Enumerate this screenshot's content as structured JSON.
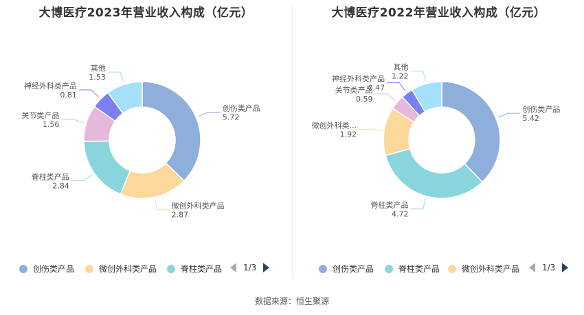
{
  "source": "数据来源：恒生聚源",
  "chart_data": [
    {
      "type": "pie",
      "title": "大博医疗2023年营业收入构成（亿元）",
      "series": [
        {
          "name": "创伤类产品",
          "value": 5.72,
          "color": "#8eaedb",
          "label_name": "创伤类产品",
          "label_value": "5.72"
        },
        {
          "name": "微创外科类产品",
          "value": 2.87,
          "color": "#fcd89a",
          "label_name": "微创外科类产品",
          "label_value": "2.87"
        },
        {
          "name": "脊柱类产品",
          "value": 2.84,
          "color": "#88d6dc",
          "label_name": "脊柱类产品",
          "label_value": "2.84"
        },
        {
          "name": "关节类产品",
          "value": 1.56,
          "color": "#e6b8d9",
          "label_name": "关节类产品",
          "label_value": "1.56"
        },
        {
          "name": "神经外科类产品",
          "value": 0.81,
          "color": "#7b7ff2",
          "label_name": "神经外科类产品",
          "label_value": "0.81"
        },
        {
          "name": "其他",
          "value": 1.53,
          "color": "#a4e0f7",
          "label_name": "其他",
          "label_value": "1.53"
        }
      ],
      "legend": {
        "items": [
          {
            "label": "创伤类产品",
            "color": "#8eaedb"
          },
          {
            "label": "微创外科类产品",
            "color": "#fcd89a"
          },
          {
            "label": "脊柱类产品",
            "color": "#88d6dc"
          }
        ],
        "page": "1/3"
      }
    },
    {
      "type": "pie",
      "title": "大博医疗2022年营业收入构成（亿元）",
      "series": [
        {
          "name": "创伤类产品",
          "value": 5.42,
          "color": "#8eaedb",
          "label_name": "创伤类产品",
          "label_value": "5.42"
        },
        {
          "name": "脊柱类产品",
          "value": 4.72,
          "color": "#88d6dc",
          "label_name": "脊柱类产品",
          "label_value": "4.72"
        },
        {
          "name": "微创外科类产品",
          "value": 1.92,
          "color": "#fcd89a",
          "label_name": "微创外科类...",
          "label_value": "1.92"
        },
        {
          "name": "关节类产品",
          "value": 0.59,
          "color": "#e6b8d9",
          "label_name": "关节类产品",
          "label_value": "0.59"
        },
        {
          "name": "神经外科类产品",
          "value": 0.47,
          "color": "#7b7ff2",
          "label_name": "神经外科类产品",
          "label_value": "0.47"
        },
        {
          "name": "其他",
          "value": 1.22,
          "color": "#a4e0f7",
          "label_name": "其他",
          "label_value": "1.22"
        }
      ],
      "legend": {
        "items": [
          {
            "label": "创伤类产品",
            "color": "#8eaedb"
          },
          {
            "label": "脊柱类产品",
            "color": "#88d6dc"
          },
          {
            "label": "微创外科类产品",
            "color": "#fcd89a"
          }
        ],
        "page": "1/3"
      }
    }
  ]
}
